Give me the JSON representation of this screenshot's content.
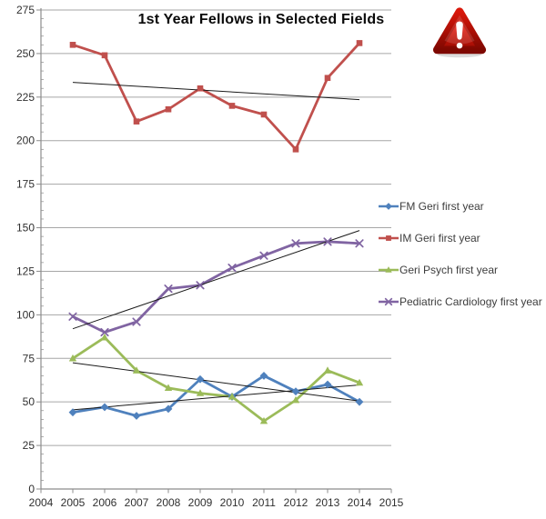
{
  "title": "1st Year Fellows in Selected Fields",
  "warning_icon": {
    "meaning": "alert",
    "color": "#d81508"
  },
  "chart_data": {
    "type": "line",
    "title": "1st Year Fellows in Selected Fields",
    "categories": [
      2005,
      2006,
      2007,
      2008,
      2009,
      2010,
      2011,
      2012,
      2013,
      2014
    ],
    "series": [
      {
        "name": "FM Geri first year",
        "color": "#4F81BD",
        "marker": "diamond",
        "values": [
          44,
          47,
          42,
          46,
          63,
          53,
          65,
          56,
          60,
          50
        ],
        "trendline": true
      },
      {
        "name": "IM Geri first year",
        "color": "#C0504D",
        "marker": "square",
        "values": [
          255,
          249,
          211,
          218,
          230,
          220,
          215,
          195,
          236,
          256
        ],
        "trendline": true
      },
      {
        "name": "Geri Psych first year",
        "color": "#9BBB59",
        "marker": "triangle",
        "values": [
          75,
          87,
          68,
          58,
          55,
          53,
          39,
          51,
          68,
          61
        ],
        "trendline": true
      },
      {
        "name": "Pediatric Cardiology first year",
        "color": "#8064A2",
        "marker": "x",
        "values": [
          99,
          90,
          96,
          115,
          117,
          127,
          134,
          141,
          142,
          141
        ],
        "trendline": true
      }
    ],
    "xlabel": "",
    "ylabel": "",
    "xlim": [
      2004,
      2015
    ],
    "ylim": [
      0,
      275
    ],
    "x_ticks": [
      2004,
      2005,
      2006,
      2007,
      2008,
      2009,
      2010,
      2011,
      2012,
      2013,
      2014,
      2015
    ],
    "y_ticks": [
      0,
      25,
      50,
      75,
      100,
      125,
      150,
      175,
      200,
      225,
      250,
      275
    ],
    "y_minor_tick_step": 5,
    "grid": true,
    "grid_color": "#a6a6a6",
    "axis_color": "#8c8c8c",
    "tick_label_color": "#303030",
    "trendline_color": "#1a1a1a",
    "legend_position": "right"
  }
}
